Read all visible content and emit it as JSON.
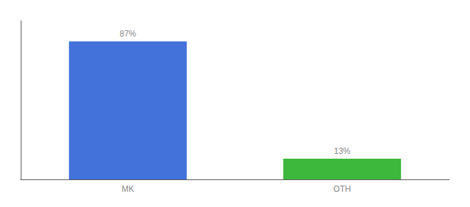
{
  "chart_data": {
    "type": "bar",
    "categories": [
      "MK",
      "OTH"
    ],
    "values": [
      87,
      13
    ],
    "value_labels": [
      "87%",
      "13%"
    ],
    "colors": [
      "#4472db",
      "#3db83d"
    ],
    "ylim": [
      0,
      100
    ],
    "data_labels": true,
    "tick_labels": "x",
    "grid": false
  }
}
